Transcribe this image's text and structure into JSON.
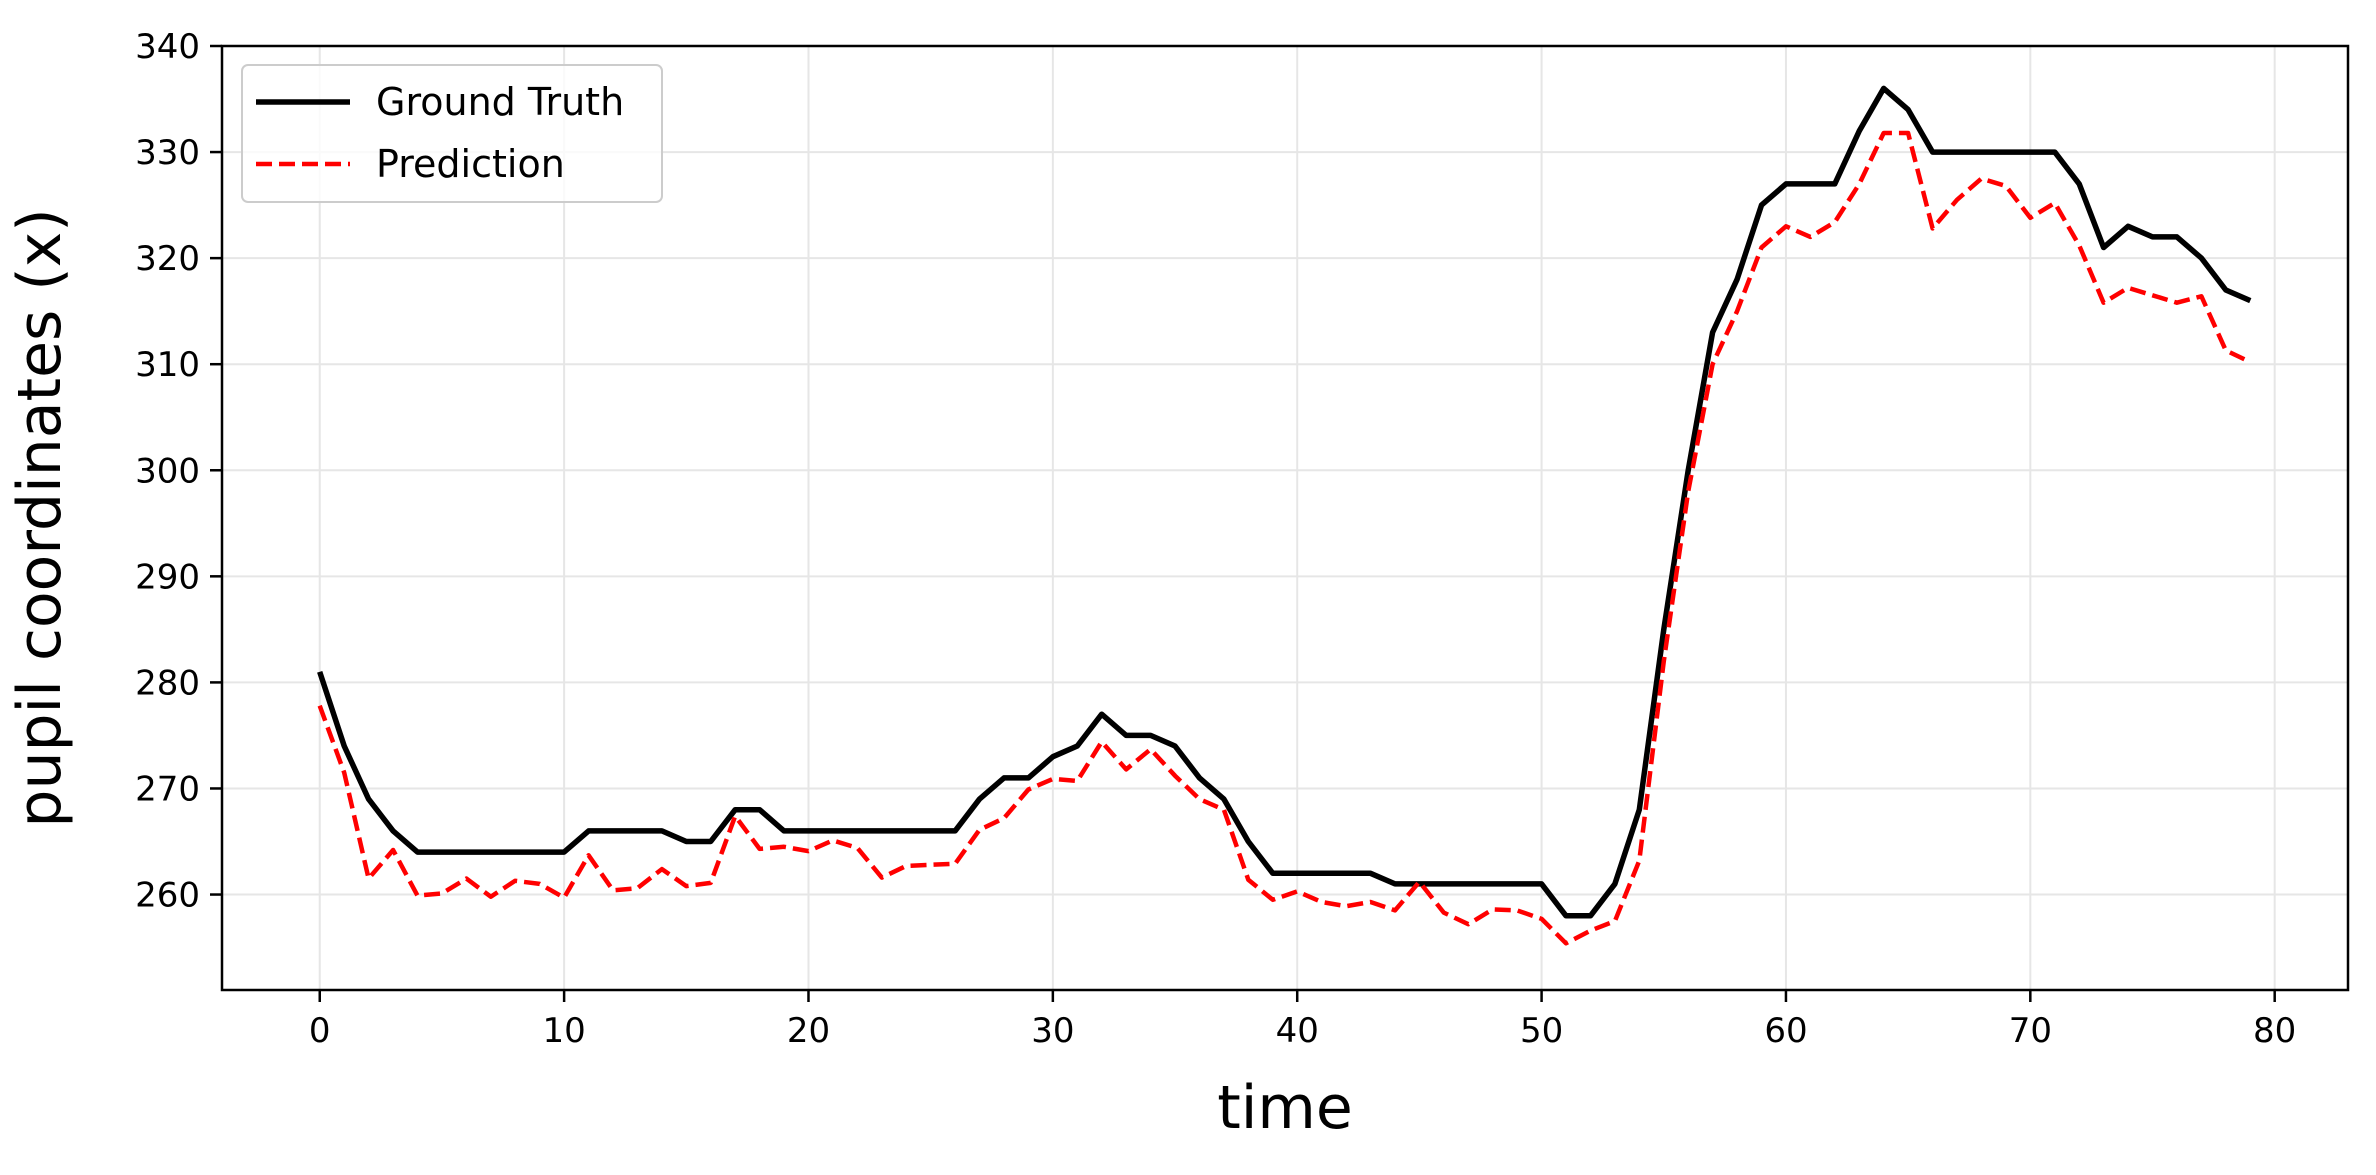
{
  "chart_data": {
    "type": "line",
    "title": "",
    "xlabel": "time",
    "ylabel": "pupil coordinates (x)",
    "xlim": [
      -4,
      83
    ],
    "ylim": [
      251,
      340
    ],
    "xticks": [
      0,
      10,
      20,
      30,
      40,
      50,
      60,
      70,
      80
    ],
    "yticks": [
      260,
      270,
      280,
      290,
      300,
      310,
      320,
      330,
      340
    ],
    "grid": true,
    "legend_position": "top-left",
    "series": [
      {
        "name": "Ground Truth",
        "color": "#000000",
        "style": "solid",
        "x": [
          0,
          1,
          2,
          3,
          4,
          5,
          6,
          7,
          8,
          9,
          10,
          11,
          12,
          13,
          14,
          15,
          16,
          17,
          18,
          19,
          20,
          21,
          22,
          23,
          24,
          25,
          26,
          27,
          28,
          29,
          30,
          31,
          32,
          33,
          34,
          35,
          36,
          37,
          38,
          39,
          40,
          41,
          42,
          43,
          44,
          45,
          46,
          47,
          48,
          49,
          50,
          51,
          52,
          53,
          54,
          55,
          56,
          57,
          58,
          59,
          60,
          61,
          62,
          63,
          64,
          65,
          66,
          67,
          68,
          69,
          70,
          71,
          72,
          73,
          74,
          75,
          76,
          77,
          78,
          79
        ],
        "y": [
          281,
          274,
          269,
          266,
          264,
          264,
          264,
          264,
          264,
          264,
          264,
          266,
          266,
          266,
          266,
          265,
          265,
          268,
          268,
          266,
          266,
          266,
          266,
          266,
          266,
          266,
          266,
          269,
          271,
          271,
          273,
          274,
          277,
          275,
          275,
          274,
          271,
          269,
          265,
          262,
          262,
          262,
          262,
          262,
          261,
          261,
          261,
          261,
          261,
          261,
          261,
          258,
          258,
          261,
          268,
          285,
          300,
          313,
          318,
          325,
          327,
          327,
          327,
          332,
          336,
          334,
          330,
          330,
          330,
          330,
          330,
          330,
          327,
          321,
          323,
          322,
          322,
          320,
          317,
          316
        ]
      },
      {
        "name": "Prediction",
        "color": "#ff0000",
        "style": "dashed",
        "x": [
          0,
          1,
          2,
          3,
          4,
          5,
          6,
          7,
          8,
          9,
          10,
          11,
          12,
          13,
          14,
          15,
          16,
          17,
          18,
          19,
          20,
          21,
          22,
          23,
          24,
          25,
          26,
          27,
          28,
          29,
          30,
          31,
          32,
          33,
          34,
          35,
          36,
          37,
          38,
          39,
          40,
          41,
          42,
          43,
          44,
          45,
          46,
          47,
          48,
          49,
          50,
          51,
          52,
          53,
          54,
          55,
          56,
          57,
          58,
          59,
          60,
          61,
          62,
          63,
          64,
          65,
          66,
          67,
          68,
          69,
          70,
          71,
          72,
          73,
          74,
          75,
          76,
          77,
          78,
          79
        ],
        "y": [
          277.8,
          271.5,
          261.5,
          264.2,
          259.9,
          260.1,
          261.5,
          259.8,
          261.3,
          261,
          259.7,
          263.7,
          260.4,
          260.6,
          262.4,
          260.8,
          261.1,
          267.4,
          264.3,
          264.5,
          264.1,
          265.1,
          264.4,
          261.6,
          262.7,
          262.8,
          262.9,
          266.1,
          267.2,
          269.9,
          270.9,
          270.7,
          274.4,
          271.8,
          273.7,
          271.2,
          269,
          268,
          261.4,
          259.5,
          260.3,
          259.3,
          258.9,
          259.3,
          258.5,
          261.2,
          258.3,
          257.2,
          258.6,
          258.5,
          257.7,
          255.4,
          256.6,
          257.5,
          263.2,
          282,
          298,
          310,
          315,
          321,
          323,
          322,
          323.4,
          327,
          331.8,
          331.8,
          322.8,
          325.5,
          327.5,
          326.8,
          323.8,
          325.2,
          321.2,
          315.8,
          317.2,
          316.5,
          315.8,
          316.4,
          311.3,
          310.2
        ]
      }
    ]
  }
}
